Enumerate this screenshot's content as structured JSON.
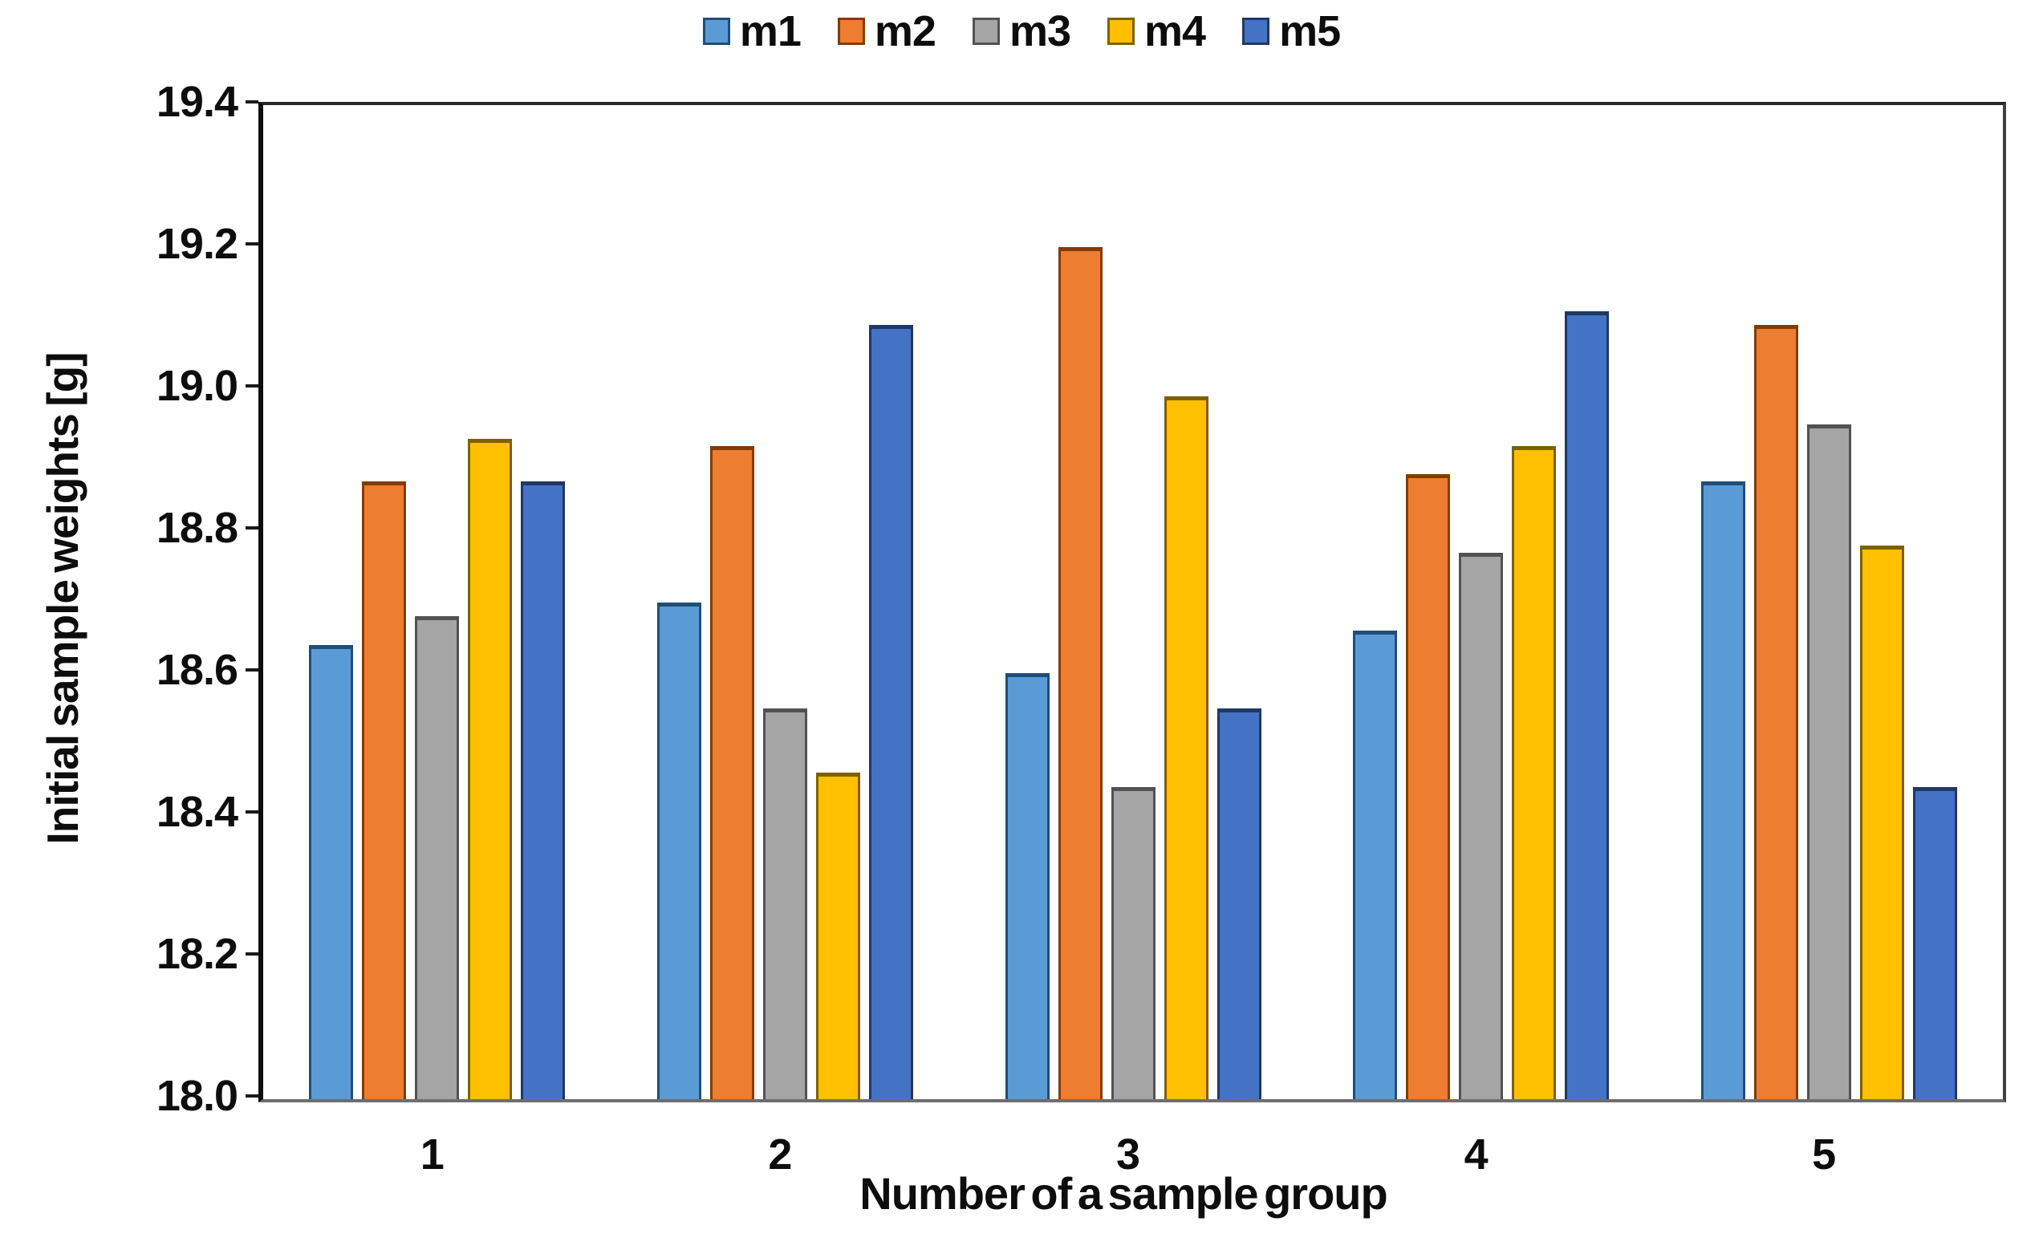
{
  "chart_data": {
    "type": "bar",
    "title": "",
    "categories": [
      "1",
      "2",
      "3",
      "4",
      "5"
    ],
    "series": [
      {
        "name": "m1",
        "color": "#5B9BD5",
        "border": "#1F4E79",
        "values": [
          18.64,
          18.7,
          18.6,
          18.66,
          18.87
        ]
      },
      {
        "name": "m2",
        "color": "#ED7D31",
        "border": "#833C00",
        "values": [
          18.87,
          18.92,
          19.2,
          18.88,
          19.09
        ]
      },
      {
        "name": "m3",
        "color": "#A5A5A5",
        "border": "#525252",
        "values": [
          18.68,
          18.55,
          18.44,
          18.77,
          18.95
        ]
      },
      {
        "name": "m4",
        "color": "#FFC000",
        "border": "#7F6000",
        "values": [
          18.93,
          18.46,
          18.99,
          18.92,
          18.78
        ]
      },
      {
        "name": "m5",
        "color": "#4472C4",
        "border": "#1F3864",
        "values": [
          18.87,
          19.09,
          18.55,
          19.11,
          18.44
        ]
      }
    ],
    "xlabel": "Number of a sample group",
    "ylabel": "Initial sample weights [g]",
    "ylim": [
      18.0,
      19.4
    ],
    "ytick_step": 0.2,
    "ytick_labels": [
      "19.4",
      "19.2",
      "19.0",
      "18.8",
      "18.6",
      "18.4",
      "18.2",
      "18.0"
    ],
    "grid": false,
    "legend_position": "top",
    "background": "#ffffff"
  }
}
